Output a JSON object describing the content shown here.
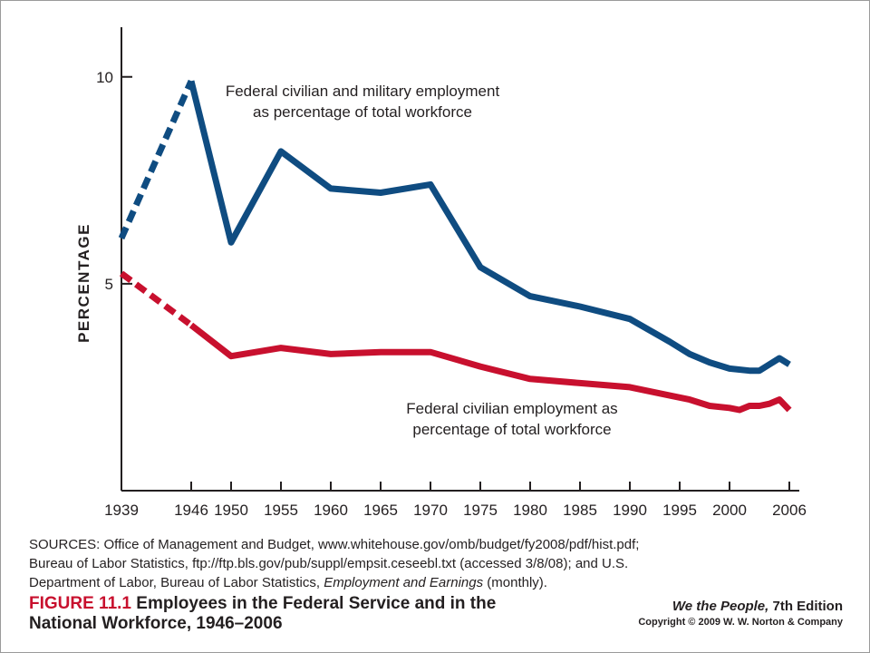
{
  "chart_data": {
    "type": "line",
    "ylabel": "PERCENTAGE",
    "xlabel": "",
    "ylim": [
      0,
      11.2
    ],
    "xlim": [
      1939,
      2007
    ],
    "y_ticks": [
      {
        "value": 5,
        "label": "5"
      },
      {
        "value": 10,
        "label": "10"
      }
    ],
    "x_ticks": [
      {
        "value": 1939,
        "label": "1939"
      },
      {
        "value": 1946,
        "label": "1946"
      },
      {
        "value": 1950,
        "label": "1950"
      },
      {
        "value": 1955,
        "label": "1955"
      },
      {
        "value": 1960,
        "label": "1960"
      },
      {
        "value": 1965,
        "label": "1965"
      },
      {
        "value": 1970,
        "label": "1970"
      },
      {
        "value": 1975,
        "label": "1975"
      },
      {
        "value": 1980,
        "label": "1980"
      },
      {
        "value": 1985,
        "label": "1985"
      },
      {
        "value": 1990,
        "label": "1990"
      },
      {
        "value": 1995,
        "label": "1995"
      },
      {
        "value": 2000,
        "label": "2000"
      },
      {
        "value": 2006,
        "label": "2006"
      }
    ],
    "grid": false,
    "series": [
      {
        "name": "Federal civilian and military employment as percentage of total workforce",
        "color": "#0f4c81",
        "dashed_until_x": 1946,
        "x": [
          1939,
          1946,
          1950,
          1955,
          1960,
          1965,
          1970,
          1975,
          1980,
          1985,
          1990,
          1994,
          1996,
          1998,
          2000,
          2002,
          2003,
          2004,
          2005,
          2006
        ],
        "y": [
          6.1,
          9.9,
          6.0,
          8.2,
          7.3,
          7.2,
          7.4,
          5.4,
          4.7,
          4.45,
          4.15,
          3.6,
          3.3,
          3.1,
          2.95,
          2.9,
          2.9,
          3.05,
          3.2,
          3.05
        ]
      },
      {
        "name": "Federal civilian employment as percentage of total workforce",
        "color": "#c8102e",
        "dashed_until_x": 1946,
        "x": [
          1939,
          1946,
          1950,
          1955,
          1960,
          1965,
          1970,
          1975,
          1980,
          1985,
          1990,
          1994,
          1996,
          1998,
          2000,
          2001,
          2002,
          2003,
          2004,
          2005,
          2006
        ],
        "y": [
          5.25,
          4.0,
          3.25,
          3.45,
          3.3,
          3.35,
          3.35,
          3.0,
          2.7,
          2.6,
          2.5,
          2.3,
          2.2,
          2.05,
          2.0,
          1.95,
          2.05,
          2.05,
          2.1,
          2.2,
          1.95
        ]
      }
    ],
    "annotations": [
      {
        "lines": [
          "Federal civilian and military employment",
          "as percentage of total workforce"
        ]
      },
      {
        "lines": [
          "Federal civilian employment as",
          "percentage of total workforce"
        ]
      }
    ]
  },
  "sources": {
    "line1": "SOURCES: Office of Management and Budget, www.whitehouse.gov/omb/budget/fy2008/pdf/hist.pdf;",
    "line2": "Bureau of Labor Statistics, ftp://ftp.bls.gov/pub/suppl/empsit.ceseebl.txt (accessed 3/8/08); and U.S.",
    "line3_pre": "Department of Labor, Bureau of Labor Statistics, ",
    "line3_em": "Employment and Earnings",
    "line3_post": " (monthly)."
  },
  "caption": {
    "figure": "FIGURE 11.1",
    "title_line1": " Employees in the Federal Service and in the",
    "title_line2": "National Workforce, 1946–2006"
  },
  "credit": {
    "book_title": "We the People,",
    "edition": " 7th Edition",
    "copyright": "Copyright © 2009 W. W. Norton & Company"
  }
}
